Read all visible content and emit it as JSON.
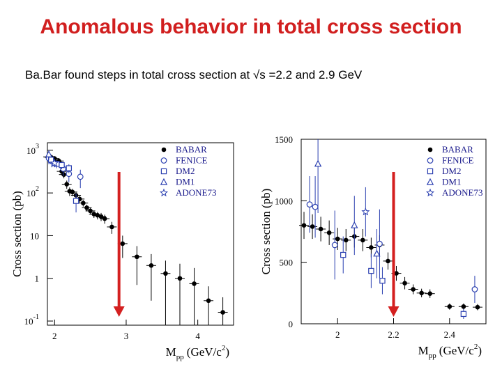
{
  "slide": {
    "title": "Anomalous behavior in total cross section",
    "subtitle": "Ba.Bar found steps in total cross section at √s =2.2 and 2.9 GeV",
    "accent_color": "#d11f1f",
    "arrow_color": "#d42020"
  },
  "chart_data": [
    {
      "type": "scatter",
      "title": "",
      "ylabel": "Cross section (pb)",
      "xlabel": "M",
      "xlabel_sub": "pp",
      "xlabel_unit": "(GeV/c",
      "xlabel_sup": "2",
      "xlabel_close": ")",
      "yscale": "log",
      "xlim": [
        1.9,
        4.5
      ],
      "ylim": [
        0.08,
        1500
      ],
      "xticks": [
        {
          "v": 2,
          "label": "2"
        },
        {
          "v": 3,
          "label": "3"
        },
        {
          "v": 4,
          "label": "4"
        }
      ],
      "yticks": [
        {
          "v": 1000,
          "base": "10",
          "exp": "3"
        },
        {
          "v": 100,
          "base": "10",
          "exp": "2"
        },
        {
          "v": 10,
          "base": "10",
          "exp": ""
        },
        {
          "v": 1,
          "base": "1",
          "exp": ""
        },
        {
          "v": 0.1,
          "base": "10",
          "exp": "-1"
        }
      ],
      "legend": [
        "BABAR",
        "FENICE",
        "DM2",
        "DM1",
        "ADONE73"
      ],
      "legend_position": "top-right",
      "series": [
        {
          "name": "BABAR",
          "marker": "filled-circle",
          "x": [
            1.89,
            1.91,
            1.93,
            1.95,
            1.97,
            2.0,
            2.03,
            2.06,
            2.1,
            2.13,
            2.17,
            2.21,
            2.25,
            2.3,
            2.35,
            2.4,
            2.45,
            2.5,
            2.55,
            2.6,
            2.65,
            2.7,
            2.8,
            2.95,
            3.15,
            3.35,
            3.55,
            3.75,
            3.95,
            4.15,
            4.35
          ],
          "y": [
            720,
            700,
            680,
            690,
            650,
            640,
            520,
            560,
            320,
            270,
            160,
            110,
            105,
            88,
            72,
            58,
            45,
            38,
            32,
            30,
            28,
            25,
            16,
            6.5,
            3.2,
            2.0,
            1.3,
            1.0,
            0.75,
            0.3,
            0.16
          ],
          "err": [
            120,
            100,
            90,
            100,
            90,
            90,
            80,
            80,
            60,
            50,
            35,
            25,
            20,
            15,
            12,
            10,
            8,
            7,
            6,
            6,
            6,
            6,
            5,
            3.5,
            2.5,
            1.7,
            1.3,
            1.2,
            1.0,
            0.35,
            0.2
          ]
        },
        {
          "name": "FENICE",
          "marker": "open-circle",
          "x": [
            1.92,
            1.96,
            2.12,
            2.2,
            2.36
          ],
          "y": [
            650,
            560,
            370,
            280,
            240
          ],
          "err": [
            180,
            160,
            120,
            100,
            110
          ]
        },
        {
          "name": "DM2",
          "marker": "open-square",
          "x": [
            1.95,
            2.03,
            2.1,
            2.2,
            2.3
          ],
          "y": [
            600,
            480,
            450,
            380,
            65
          ],
          "err": [
            120,
            100,
            90,
            90,
            30
          ]
        },
        {
          "name": "DM1",
          "marker": "open-triangle",
          "x": [
            1.88,
            1.92
          ],
          "y": [
            1050,
            800
          ],
          "err": [
            250,
            200
          ]
        },
        {
          "name": "ADONE73",
          "marker": "open-star",
          "x": [
            2.0
          ],
          "y": [
            500
          ],
          "err": [
            100
          ]
        }
      ],
      "annotation_arrow_x": 2.9
    },
    {
      "type": "scatter",
      "title": "",
      "ylabel": "Cross section (pb)",
      "xlabel": "M",
      "xlabel_sub": "pp",
      "xlabel_unit": "(GeV/c",
      "xlabel_sup": "2",
      "xlabel_close": ")",
      "yscale": "linear",
      "xlim": [
        1.87,
        2.53
      ],
      "ylim": [
        0,
        1500
      ],
      "xticks": [
        {
          "v": 2.0,
          "label": "2"
        },
        {
          "v": 2.2,
          "label": "2.2"
        },
        {
          "v": 2.4,
          "label": "2.4"
        }
      ],
      "yticks": [
        {
          "v": 0,
          "label": "0"
        },
        {
          "v": 500,
          "label": "500"
        },
        {
          "v": 1000,
          "label": "1000"
        },
        {
          "v": 1500,
          "label": "1500"
        }
      ],
      "legend": [
        "BABAR",
        "FENICE",
        "DM2",
        "DM1",
        "ADONE73"
      ],
      "legend_position": "top-right",
      "series": [
        {
          "name": "BABAR",
          "marker": "filled-circle",
          "x": [
            1.88,
            1.91,
            1.94,
            1.97,
            2.0,
            2.03,
            2.06,
            2.09,
            2.12,
            2.15,
            2.18,
            2.21,
            2.24,
            2.27,
            2.3,
            2.33,
            2.4,
            2.45,
            2.5
          ],
          "y": [
            800,
            790,
            770,
            740,
            690,
            680,
            710,
            680,
            620,
            640,
            510,
            410,
            330,
            280,
            250,
            245,
            140,
            140,
            135
          ],
          "err": [
            110,
            100,
            100,
            100,
            90,
            90,
            90,
            90,
            80,
            80,
            70,
            60,
            50,
            40,
            35,
            35,
            25,
            25,
            25
          ]
        },
        {
          "name": "FENICE",
          "marker": "open-circle",
          "x": [
            1.9,
            1.92,
            1.99,
            2.15,
            2.49
          ],
          "y": [
            970,
            950,
            640,
            650,
            280
          ],
          "err": [
            230,
            250,
            280,
            280,
            110
          ]
        },
        {
          "name": "DM2",
          "marker": "open-square",
          "x": [
            2.02,
            2.12,
            2.16,
            2.45
          ],
          "y": [
            560,
            430,
            350,
            80
          ],
          "err": [
            150,
            140,
            110,
            40
          ]
        },
        {
          "name": "DM1",
          "marker": "open-triangle",
          "x": [
            1.93,
            2.06,
            2.14
          ],
          "y": [
            1300,
            800,
            570
          ],
          "err": [
            400,
            240,
            200
          ]
        },
        {
          "name": "ADONE73",
          "marker": "open-star",
          "x": [
            2.1
          ],
          "y": [
            910
          ],
          "err": [
            200
          ]
        }
      ],
      "annotation_arrow_x": 2.2
    }
  ]
}
